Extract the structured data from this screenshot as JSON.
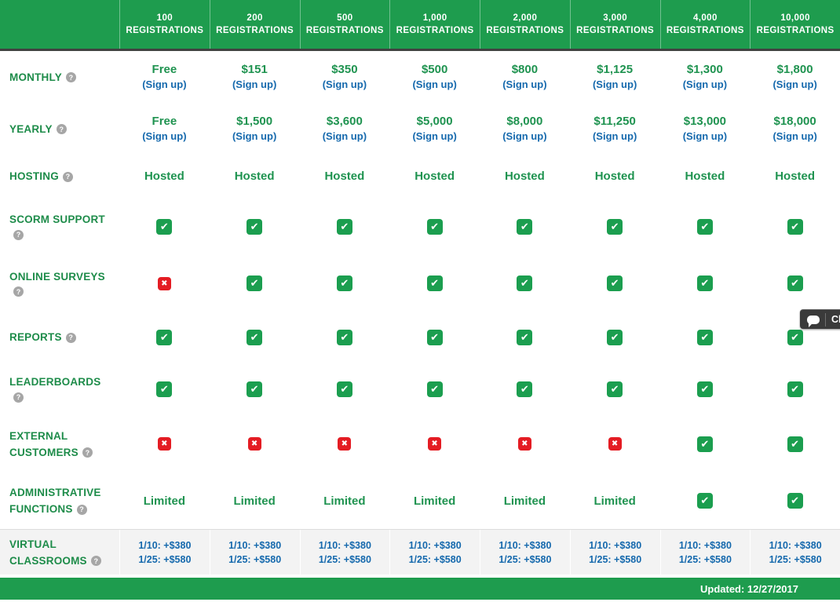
{
  "table": {
    "registrations_label": "REGISTRATIONS",
    "columns": [
      "100",
      "200",
      "500",
      "1,000",
      "2,000",
      "3,000",
      "4,000",
      "10,000"
    ],
    "rows": [
      {
        "id": "monthly",
        "label": "MONTHLY",
        "type": "price",
        "link_label": "(Sign up)",
        "values": [
          "Free",
          "$151",
          "$350",
          "$500",
          "$800",
          "$1,125",
          "$1,300",
          "$1,800"
        ]
      },
      {
        "id": "yearly",
        "label": "YEARLY",
        "type": "price",
        "link_label": "(Sign up)",
        "values": [
          "Free",
          "$1,500",
          "$3,600",
          "$5,000",
          "$8,000",
          "$11,250",
          "$13,000",
          "$18,000"
        ]
      },
      {
        "id": "hosting",
        "label": "HOSTING",
        "type": "cells",
        "values": [
          "Hosted",
          "Hosted",
          "Hosted",
          "Hosted",
          "Hosted",
          "Hosted",
          "Hosted",
          "Hosted"
        ]
      },
      {
        "id": "scorm-support",
        "label": "SCORM SUPPORT",
        "type": "cells",
        "values": [
          "check",
          "check",
          "check",
          "check",
          "check",
          "check",
          "check",
          "check"
        ]
      },
      {
        "id": "online-surveys",
        "label": "ONLINE SURVEYS",
        "type": "cells",
        "values": [
          "cross",
          "check",
          "check",
          "check",
          "check",
          "check",
          "check",
          "check"
        ]
      },
      {
        "id": "reports",
        "label": "REPORTS",
        "type": "cells",
        "values": [
          "check",
          "check",
          "check",
          "check",
          "check",
          "check",
          "check",
          "check"
        ]
      },
      {
        "id": "leaderboards",
        "label": "LEADERBOARDS",
        "type": "cells",
        "values": [
          "check",
          "check",
          "check",
          "check",
          "check",
          "check",
          "check",
          "check"
        ]
      },
      {
        "id": "external-customers",
        "label": "EXTERNAL CUSTOMERS",
        "type": "cells",
        "values": [
          "cross",
          "cross",
          "cross",
          "cross",
          "cross",
          "cross",
          "check",
          "check"
        ]
      },
      {
        "id": "administrative-functions",
        "label": "ADMINISTRATIVE FUNCTIONS",
        "type": "cells",
        "values": [
          "Limited",
          "Limited",
          "Limited",
          "Limited",
          "Limited",
          "Limited",
          "check",
          "check"
        ]
      },
      {
        "id": "virtual-classrooms",
        "label": "VIRTUAL CLASSROOMS",
        "type": "links",
        "values": [
          [
            "1/10: +$380",
            "1/25: +$580"
          ],
          [
            "1/10: +$380",
            "1/25: +$580"
          ],
          [
            "1/10: +$380",
            "1/25: +$580"
          ],
          [
            "1/10: +$380",
            "1/25: +$580"
          ],
          [
            "1/10: +$380",
            "1/25: +$580"
          ],
          [
            "1/10: +$380",
            "1/25: +$580"
          ],
          [
            "1/10: +$380",
            "1/25: +$580"
          ],
          [
            "1/10: +$380",
            "1/25: +$580"
          ]
        ]
      }
    ]
  },
  "icons": {
    "check_glyph": "✔",
    "cross_glyph": "✖",
    "help_glyph": "?"
  },
  "footer": {
    "updated": "Updated: 12/27/2017"
  },
  "chat": {
    "label": "Chat"
  },
  "colors": {
    "header_green": "#1e9c4e",
    "label_green": "#1e8c4a",
    "value_green": "#1f9350",
    "link_blue": "#1569ad",
    "check_green": "#1b9e4f",
    "cross_red": "#e41c23",
    "help_gray": "#a6a6a6",
    "band_bg": "#f3f3f3",
    "chat_bg": "#3a3a3a"
  }
}
